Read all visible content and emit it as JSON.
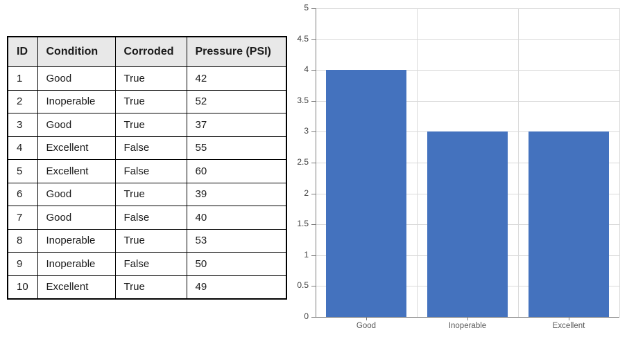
{
  "table": {
    "headers": [
      "ID",
      "Condition",
      "Corroded",
      "Pressure (PSI)"
    ],
    "rows": [
      [
        "1",
        "Good",
        "True",
        "42"
      ],
      [
        "2",
        "Inoperable",
        "True",
        "52"
      ],
      [
        "3",
        "Good",
        "True",
        "37"
      ],
      [
        "4",
        "Excellent",
        "False",
        "55"
      ],
      [
        "5",
        "Excellent",
        "False",
        "60"
      ],
      [
        "6",
        "Good",
        "True",
        "39"
      ],
      [
        "7",
        "Good",
        "False",
        "40"
      ],
      [
        "8",
        "Inoperable",
        "True",
        "53"
      ],
      [
        "9",
        "Inoperable",
        "False",
        "50"
      ],
      [
        "10",
        "Excellent",
        "True",
        "49"
      ]
    ],
    "header_bg": "#e8e8e8"
  },
  "chart_data": {
    "type": "bar",
    "categories": [
      "Good",
      "Inoperable",
      "Excellent"
    ],
    "values": [
      4,
      3,
      3
    ],
    "title": "",
    "xlabel": "",
    "ylabel": "",
    "ylim": [
      0,
      5
    ],
    "ytick_step": 0.5,
    "ytick_labels": [
      "0",
      "0.5",
      "1",
      "1.5",
      "2",
      "2.5",
      "3",
      "3.5",
      "4",
      "4.5",
      "5"
    ],
    "grid": true,
    "legend_position": "none",
    "bar_color": "#4472be",
    "grid_color": "#d9d9d9",
    "axis_color": "#7a7a7a",
    "ylabel_color": "#3f3f3f",
    "xlabel_color": "#595959"
  }
}
